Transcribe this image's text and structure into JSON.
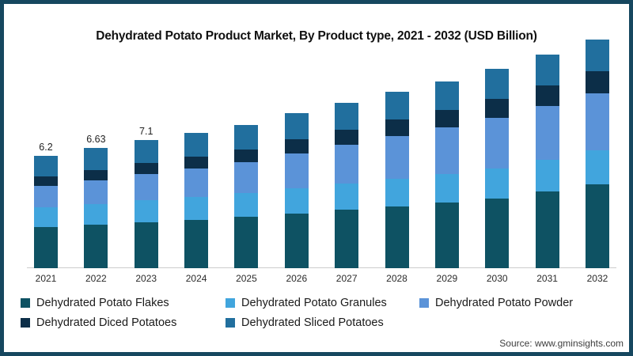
{
  "frame": {
    "border_color": "#16475f"
  },
  "chart_data": {
    "type": "bar",
    "stacked": true,
    "title": "Dehydrated Potato Product Market, By Product type, 2021 - 2032 (USD Billion)",
    "unit": "USD Billion",
    "categories": [
      "2021",
      "2022",
      "2023",
      "2024",
      "2025",
      "2026",
      "2027",
      "2028",
      "2029",
      "2030",
      "2031",
      "2032"
    ],
    "series": [
      {
        "key": "flakes",
        "name": "Dehydrated Potato Flakes",
        "color": "#0e5263",
        "values": [
          2.27,
          2.4,
          2.55,
          2.68,
          2.83,
          3.01,
          3.21,
          3.41,
          3.63,
          3.86,
          4.23,
          4.63
        ]
      },
      {
        "key": "granules",
        "name": "Dehydrated Potato Granules",
        "color": "#41a5dd",
        "values": [
          1.09,
          1.15,
          1.21,
          1.26,
          1.32,
          1.38,
          1.45,
          1.51,
          1.58,
          1.65,
          1.76,
          1.88
        ]
      },
      {
        "key": "powder",
        "name": "Dehydrated Potato Powder",
        "color": "#5b93d8",
        "values": [
          1.18,
          1.3,
          1.44,
          1.57,
          1.72,
          1.91,
          2.12,
          2.35,
          2.58,
          2.81,
          2.97,
          3.14
        ]
      },
      {
        "key": "diced",
        "name": "Dehydrated Diced Potatoes",
        "color": "#0c2e48",
        "values": [
          0.52,
          0.57,
          0.62,
          0.67,
          0.72,
          0.78,
          0.84,
          0.9,
          0.97,
          1.04,
          1.13,
          1.22
        ]
      },
      {
        "key": "sliced",
        "name": "Dehydrated Sliced Potatoes",
        "color": "#216f9e",
        "values": [
          1.14,
          1.21,
          1.28,
          1.32,
          1.36,
          1.42,
          1.48,
          1.53,
          1.59,
          1.64,
          1.71,
          1.73
        ]
      }
    ],
    "totals": [
      6.2,
      6.63,
      7.1,
      7.5,
      7.95,
      8.5,
      9.1,
      9.7,
      10.35,
      11.0,
      11.8,
      12.6
    ],
    "bar_total_labels": [
      "6.2",
      "6.63",
      "7.1",
      "",
      "",
      "",
      "",
      "",
      "",
      "",
      "",
      ""
    ],
    "ylim": [
      0,
      14.8
    ],
    "grid": false,
    "y_axis_visible": false,
    "legend_position": "bottom-left",
    "legend_rows": [
      [
        "flakes",
        "granules",
        "powder"
      ],
      [
        "diced",
        "sliced"
      ]
    ],
    "axis_line_color": "#cccccc"
  },
  "source": {
    "label": "Source: www.gminsights.com"
  }
}
